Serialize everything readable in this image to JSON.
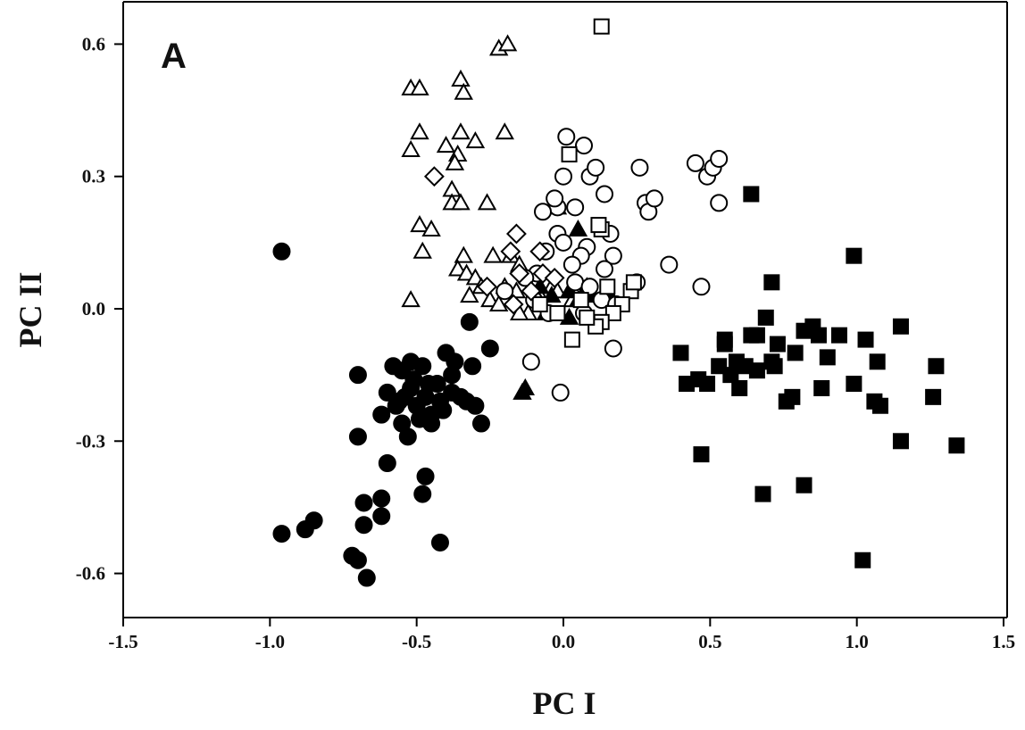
{
  "chart_data": {
    "type": "scatter",
    "panel_label": "A",
    "xlabel": "PC I",
    "ylabel": "PC II",
    "xlim": [
      -1.5,
      1.5
    ],
    "ylim": [
      -0.7,
      0.7
    ],
    "x_ticks": [
      "-1.5",
      "-1.0",
      "-0.5",
      "0.0",
      "0.5",
      "1.0",
      "1.5"
    ],
    "y_ticks": [
      "0.6",
      "0.3",
      "0.0",
      "-0.3",
      "-0.6"
    ],
    "grid": false,
    "legend": "none",
    "series": [
      {
        "marker": "circle",
        "filled": true,
        "points": [
          [
            -0.96,
            0.13
          ],
          [
            -0.32,
            -0.03
          ],
          [
            -0.25,
            -0.09
          ],
          [
            -0.28,
            -0.26
          ],
          [
            -0.31,
            -0.13
          ],
          [
            -0.37,
            -0.12
          ],
          [
            -0.4,
            -0.1
          ],
          [
            -0.43,
            -0.17
          ],
          [
            -0.48,
            -0.13
          ],
          [
            -0.52,
            -0.12
          ],
          [
            -0.55,
            -0.14
          ],
          [
            -0.58,
            -0.13
          ],
          [
            -0.6,
            -0.19
          ],
          [
            -0.57,
            -0.22
          ],
          [
            -0.54,
            -0.2
          ],
          [
            -0.5,
            -0.22
          ],
          [
            -0.47,
            -0.2
          ],
          [
            -0.45,
            -0.24
          ],
          [
            -0.42,
            -0.21
          ],
          [
            -0.38,
            -0.19
          ],
          [
            -0.35,
            -0.2
          ],
          [
            -0.33,
            -0.21
          ],
          [
            -0.3,
            -0.22
          ],
          [
            -0.38,
            -0.15
          ],
          [
            -0.46,
            -0.17
          ],
          [
            -0.52,
            -0.18
          ],
          [
            -0.49,
            -0.25
          ],
          [
            -0.55,
            -0.26
          ],
          [
            -0.62,
            -0.24
          ],
          [
            -0.7,
            -0.15
          ],
          [
            -0.53,
            -0.29
          ],
          [
            -0.45,
            -0.26
          ],
          [
            -0.6,
            -0.35
          ],
          [
            -0.7,
            -0.29
          ],
          [
            -0.47,
            -0.38
          ],
          [
            -0.48,
            -0.42
          ],
          [
            -0.62,
            -0.43
          ],
          [
            -0.68,
            -0.44
          ],
          [
            -0.62,
            -0.47
          ],
          [
            -0.68,
            -0.49
          ],
          [
            -0.85,
            -0.48
          ],
          [
            -0.88,
            -0.5
          ],
          [
            -0.96,
            -0.51
          ],
          [
            -0.42,
            -0.53
          ],
          [
            -0.72,
            -0.56
          ],
          [
            -0.7,
            -0.57
          ],
          [
            -0.67,
            -0.61
          ],
          [
            -0.56,
            -0.21
          ],
          [
            -0.51,
            -0.16
          ],
          [
            -0.41,
            -0.23
          ]
        ]
      },
      {
        "marker": "square",
        "filled": true,
        "points": [
          [
            0.64,
            0.26
          ],
          [
            0.99,
            0.12
          ],
          [
            0.71,
            0.06
          ],
          [
            0.4,
            -0.1
          ],
          [
            0.42,
            -0.17
          ],
          [
            0.46,
            -0.16
          ],
          [
            0.49,
            -0.17
          ],
          [
            0.53,
            -0.13
          ],
          [
            0.55,
            -0.08
          ],
          [
            0.57,
            -0.15
          ],
          [
            0.59,
            -0.12
          ],
          [
            0.6,
            -0.18
          ],
          [
            0.62,
            -0.13
          ],
          [
            0.64,
            -0.06
          ],
          [
            0.66,
            -0.14
          ],
          [
            0.69,
            -0.02
          ],
          [
            0.71,
            -0.12
          ],
          [
            0.73,
            -0.08
          ],
          [
            0.76,
            -0.21
          ],
          [
            0.79,
            -0.1
          ],
          [
            0.82,
            -0.05
          ],
          [
            0.85,
            -0.04
          ],
          [
            0.87,
            -0.06
          ],
          [
            0.88,
            -0.18
          ],
          [
            0.9,
            -0.11
          ],
          [
            0.94,
            -0.06
          ],
          [
            0.99,
            -0.17
          ],
          [
            1.03,
            -0.07
          ],
          [
            1.06,
            -0.21
          ],
          [
            1.07,
            -0.12
          ],
          [
            1.08,
            -0.22
          ],
          [
            1.15,
            -0.04
          ],
          [
            1.15,
            -0.3
          ],
          [
            1.26,
            -0.2
          ],
          [
            1.27,
            -0.13
          ],
          [
            1.34,
            -0.31
          ],
          [
            0.47,
            -0.33
          ],
          [
            0.68,
            -0.42
          ],
          [
            0.82,
            -0.4
          ],
          [
            1.02,
            -0.57
          ],
          [
            0.72,
            -0.13
          ],
          [
            0.78,
            -0.2
          ],
          [
            0.55,
            -0.07
          ],
          [
            0.66,
            -0.06
          ]
        ]
      },
      {
        "marker": "triangle",
        "filled": false,
        "points": [
          [
            -0.52,
            0.5
          ],
          [
            -0.49,
            0.5
          ],
          [
            -0.22,
            0.59
          ],
          [
            -0.19,
            0.6
          ],
          [
            -0.35,
            0.52
          ],
          [
            -0.34,
            0.49
          ],
          [
            -0.49,
            0.4
          ],
          [
            -0.4,
            0.37
          ],
          [
            -0.35,
            0.4
          ],
          [
            -0.3,
            0.38
          ],
          [
            -0.2,
            0.4
          ],
          [
            -0.36,
            0.35
          ],
          [
            -0.37,
            0.33
          ],
          [
            -0.52,
            0.36
          ],
          [
            -0.38,
            0.27
          ],
          [
            -0.38,
            0.24
          ],
          [
            -0.35,
            0.24
          ],
          [
            -0.26,
            0.24
          ],
          [
            -0.49,
            0.19
          ],
          [
            -0.45,
            0.18
          ],
          [
            -0.48,
            0.13
          ],
          [
            -0.34,
            0.12
          ],
          [
            -0.24,
            0.12
          ],
          [
            -0.18,
            0.12
          ],
          [
            -0.15,
            0.1
          ],
          [
            -0.36,
            0.09
          ],
          [
            -0.33,
            0.08
          ],
          [
            -0.3,
            0.07
          ],
          [
            -0.28,
            0.05
          ],
          [
            -0.52,
            0.02
          ],
          [
            -0.25,
            0.02
          ],
          [
            -0.2,
            0.05
          ],
          [
            -0.16,
            0.04
          ],
          [
            -0.1,
            0.06
          ],
          [
            -0.12,
            -0.01
          ],
          [
            -0.08,
            0.03
          ],
          [
            -0.04,
            0.05
          ],
          [
            -0.02,
            0.04
          ],
          [
            0.03,
            0.02
          ],
          [
            -0.15,
            -0.01
          ],
          [
            -0.22,
            0.01
          ],
          [
            -0.32,
            0.03
          ]
        ]
      },
      {
        "marker": "triangle",
        "filled": true,
        "points": [
          [
            -0.02,
            0.23
          ],
          [
            0.05,
            0.18
          ],
          [
            -0.08,
            0.05
          ],
          [
            0.02,
            0.04
          ],
          [
            0.05,
            0.02
          ],
          [
            0.1,
            0.03
          ],
          [
            0.15,
            0.04
          ],
          [
            -0.06,
            -0.01
          ],
          [
            0.02,
            -0.02
          ],
          [
            -0.14,
            -0.19
          ],
          [
            -0.13,
            -0.18
          ],
          [
            0.08,
            0.05
          ],
          [
            -0.04,
            0.03
          ]
        ]
      },
      {
        "marker": "circle",
        "filled": false,
        "points": [
          [
            0.01,
            0.39
          ],
          [
            0.07,
            0.37
          ],
          [
            0.09,
            0.3
          ],
          [
            0.11,
            0.32
          ],
          [
            0.0,
            0.3
          ],
          [
            0.14,
            0.26
          ],
          [
            0.26,
            0.32
          ],
          [
            0.28,
            0.24
          ],
          [
            0.29,
            0.22
          ],
          [
            0.31,
            0.25
          ],
          [
            0.45,
            0.33
          ],
          [
            0.49,
            0.3
          ],
          [
            0.51,
            0.32
          ],
          [
            0.53,
            0.34
          ],
          [
            0.53,
            0.24
          ],
          [
            0.36,
            0.1
          ],
          [
            0.47,
            0.05
          ],
          [
            0.17,
            0.12
          ],
          [
            0.14,
            0.09
          ],
          [
            0.16,
            0.17
          ],
          [
            0.08,
            0.14
          ],
          [
            0.06,
            0.12
          ],
          [
            0.03,
            0.1
          ],
          [
            -0.02,
            0.23
          ],
          [
            0.04,
            0.23
          ],
          [
            -0.02,
            0.17
          ],
          [
            0.0,
            0.15
          ],
          [
            -0.06,
            0.13
          ],
          [
            -0.09,
            0.08
          ],
          [
            -0.13,
            0.07
          ],
          [
            -0.1,
            0.02
          ],
          [
            0.04,
            0.06
          ],
          [
            0.09,
            0.05
          ],
          [
            0.13,
            0.02
          ],
          [
            0.18,
            0.01
          ],
          [
            0.25,
            0.06
          ],
          [
            -0.11,
            -0.12
          ],
          [
            -0.01,
            -0.19
          ],
          [
            0.17,
            -0.09
          ],
          [
            -0.2,
            0.04
          ],
          [
            -0.05,
            -0.01
          ],
          [
            0.07,
            -0.01
          ],
          [
            -0.07,
            0.22
          ],
          [
            -0.03,
            0.25
          ]
        ]
      },
      {
        "marker": "square",
        "filled": false,
        "points": [
          [
            0.13,
            0.64
          ],
          [
            0.02,
            0.35
          ],
          [
            0.13,
            0.18
          ],
          [
            0.12,
            0.19
          ],
          [
            0.23,
            0.04
          ],
          [
            0.2,
            0.01
          ],
          [
            0.17,
            -0.01
          ],
          [
            0.13,
            -0.03
          ],
          [
            0.03,
            -0.07
          ],
          [
            0.11,
            -0.04
          ],
          [
            -0.02,
            -0.01
          ],
          [
            0.06,
            0.02
          ],
          [
            -0.08,
            0.01
          ],
          [
            0.15,
            0.05
          ],
          [
            0.24,
            0.06
          ],
          [
            0.08,
            -0.02
          ]
        ]
      },
      {
        "marker": "diamond",
        "filled": false,
        "points": [
          [
            -0.44,
            0.3
          ],
          [
            -0.16,
            0.17
          ],
          [
            -0.18,
            0.13
          ],
          [
            -0.08,
            0.13
          ],
          [
            -0.15,
            0.08
          ],
          [
            -0.07,
            0.08
          ],
          [
            -0.03,
            0.07
          ],
          [
            -0.11,
            0.04
          ],
          [
            -0.26,
            0.05
          ],
          [
            -0.17,
            0.01
          ]
        ]
      }
    ]
  }
}
